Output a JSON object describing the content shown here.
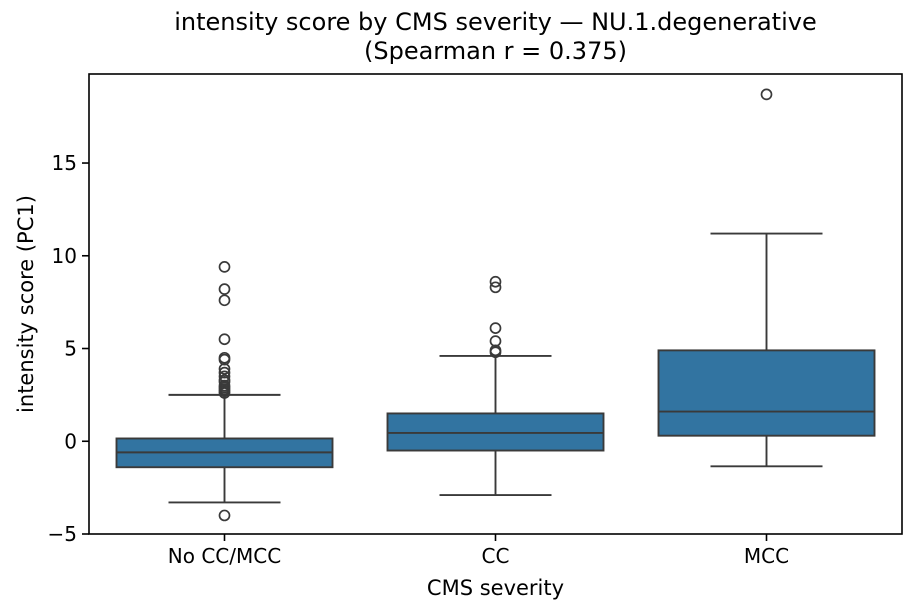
{
  "chart_data": {
    "type": "box",
    "title": "intensity score by CMS severity — NU.1.degenerative",
    "subtitle": "(Spearman r = 0.375)",
    "xlabel": "CMS severity",
    "ylabel": "intensity score (PC1)",
    "categories": [
      "No CC/MCC",
      "CC",
      "MCC"
    ],
    "ylim": [
      -5,
      19.8
    ],
    "yticks": [
      -5,
      0,
      5,
      10,
      15
    ],
    "ytick_labels": [
      "−5",
      "0",
      "5",
      "10",
      "15"
    ],
    "grid": false,
    "legend": "none",
    "spearman_r": 0.375,
    "series": [
      {
        "category": "No CC/MCC",
        "whisker_low": -3.3,
        "q1": -1.4,
        "median": -0.6,
        "q3": 0.15,
        "whisker_high": 2.5,
        "outliers": [
          -4.0,
          2.6,
          2.7,
          2.8,
          2.9,
          3.0,
          3.2,
          3.3,
          3.5,
          3.7,
          3.9,
          4.4,
          4.5,
          5.5,
          7.6,
          8.2,
          9.4
        ]
      },
      {
        "category": "CC",
        "whisker_low": -2.9,
        "q1": -0.5,
        "median": 0.45,
        "q3": 1.5,
        "whisker_high": 4.6,
        "outliers": [
          4.8,
          4.9,
          5.4,
          6.1,
          8.3,
          8.6
        ]
      },
      {
        "category": "MCC",
        "whisker_low": -1.35,
        "q1": 0.3,
        "median": 1.6,
        "q3": 4.9,
        "whisker_high": 11.2,
        "outliers": [
          18.7
        ]
      }
    ],
    "colors": {
      "box_fill": "#3274a1",
      "box_edge": "#3a3a3a",
      "whisker": "#3a3a3a",
      "median": "#3a3a3a",
      "outlier_edge": "#3a3a3a",
      "spine": "#000000",
      "text": "#000000",
      "background": "#ffffff"
    }
  }
}
